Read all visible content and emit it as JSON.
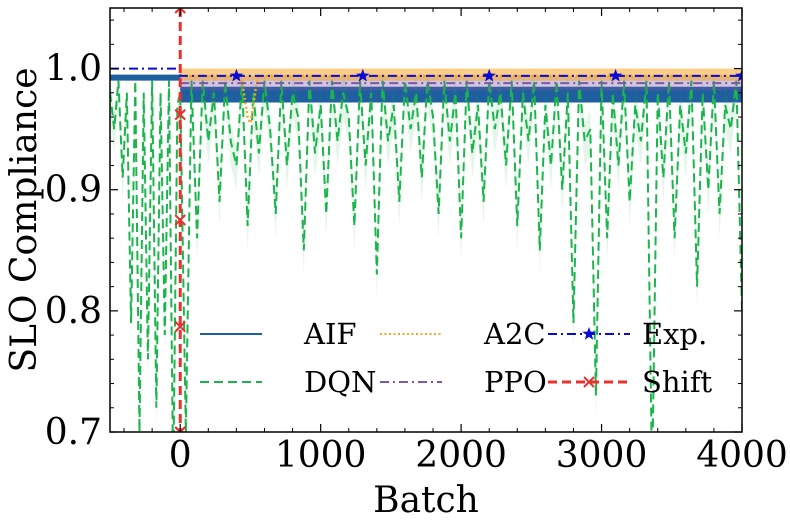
{
  "chart_data": {
    "type": "line",
    "title": "",
    "xlabel": "Batch",
    "ylabel": "SLO Compliance",
    "xlim": [
      -500,
      4000
    ],
    "ylim": [
      0.7,
      1.05
    ],
    "x_ticks": [
      0,
      1000,
      2000,
      3000,
      4000
    ],
    "x_tick_labels": [
      "0",
      "1000",
      "2000",
      "3000",
      "4000"
    ],
    "y_ticks": [
      0.7,
      0.8,
      0.9,
      1.0
    ],
    "y_tick_labels": [
      "0.7",
      "0.8",
      "0.9",
      "1.0"
    ],
    "grid": false,
    "legend_position": "lower-right",
    "series": [
      {
        "name": "AIF",
        "color": "#1f5f9f",
        "style": "solid",
        "description_points": {
          "x": [
            -500,
            0,
            0,
            4000
          ],
          "y_low": [
            0.99,
            0.99,
            0.972,
            0.972
          ],
          "y_high": [
            0.995,
            0.995,
            0.985,
            0.985
          ]
        }
      },
      {
        "name": "DQN",
        "color": "#1cb44c",
        "style": "dashed",
        "points": {
          "x": [
            -500,
            -470,
            -440,
            -410,
            -380,
            -350,
            -320,
            -290,
            -260,
            -230,
            -200,
            -170,
            -140,
            -110,
            -80,
            -50,
            -20,
            0,
            40,
            80,
            120,
            160,
            200,
            240,
            280,
            320,
            360,
            400,
            440,
            480,
            520,
            560,
            600,
            640,
            680,
            720,
            760,
            800,
            840,
            880,
            920,
            960,
            1000,
            1040,
            1080,
            1120,
            1160,
            1200,
            1240,
            1280,
            1320,
            1360,
            1400,
            1440,
            1480,
            1520,
            1560,
            1600,
            1640,
            1680,
            1720,
            1760,
            1800,
            1840,
            1880,
            1920,
            1960,
            2000,
            2040,
            2080,
            2120,
            2160,
            2200,
            2240,
            2280,
            2320,
            2360,
            2400,
            2440,
            2480,
            2520,
            2560,
            2600,
            2640,
            2680,
            2720,
            2760,
            2800,
            2840,
            2880,
            2920,
            2960,
            3000,
            3040,
            3080,
            3120,
            3160,
            3200,
            3240,
            3280,
            3320,
            3360,
            3400,
            3440,
            3480,
            3520,
            3560,
            3600,
            3640,
            3680,
            3720,
            3760,
            3800,
            3840,
            3880,
            3920,
            3960,
            4000
          ],
          "y": [
            0.98,
            0.95,
            0.99,
            0.91,
            0.98,
            0.79,
            0.99,
            0.7,
            0.98,
            0.76,
            0.99,
            0.72,
            0.98,
            0.78,
            0.99,
            0.66,
            0.97,
            0.98,
            0.7,
            0.99,
            0.86,
            0.99,
            0.94,
            0.98,
            0.89,
            0.99,
            0.94,
            0.92,
            0.99,
            0.87,
            0.98,
            0.93,
            0.99,
            0.95,
            0.88,
            0.99,
            0.92,
            0.98,
            0.96,
            0.85,
            0.99,
            0.93,
            0.97,
            0.88,
            0.99,
            0.94,
            0.98,
            0.96,
            0.87,
            0.99,
            0.92,
            0.98,
            0.83,
            0.99,
            0.94,
            0.97,
            0.89,
            0.99,
            0.95,
            0.98,
            0.91,
            0.99,
            0.96,
            0.88,
            0.99,
            0.94,
            0.98,
            0.86,
            0.99,
            0.93,
            0.97,
            0.89,
            0.99,
            0.95,
            0.98,
            0.92,
            0.99,
            0.87,
            0.98,
            0.94,
            0.99,
            0.85,
            0.97,
            0.92,
            0.99,
            0.9,
            0.98,
            0.79,
            0.99,
            0.94,
            0.95,
            0.73,
            0.99,
            0.86,
            0.98,
            0.92,
            0.99,
            0.89,
            0.97,
            0.94,
            0.99,
            0.66,
            0.98,
            0.91,
            0.99,
            0.86,
            0.97,
            0.93,
            0.99,
            0.82,
            0.98,
            0.9,
            0.99,
            0.88,
            0.97,
            0.95,
            0.99,
            0.8
          ]
        }
      },
      {
        "name": "A2C",
        "color": "#f5a623",
        "style": "dotted",
        "points": {
          "x": [
            0,
            400,
            440,
            460,
            480,
            500,
            520,
            540,
            560,
            600,
            1000,
            2000,
            3000,
            4000
          ],
          "y": [
            0.994,
            0.994,
            0.99,
            0.975,
            0.96,
            0.955,
            0.97,
            0.985,
            0.994,
            0.994,
            0.994,
            0.994,
            0.994,
            0.994
          ]
        }
      },
      {
        "name": "PPO",
        "color": "#7a5aa6",
        "style": "dashdot",
        "points": {
          "x": [
            0,
            1000,
            2000,
            3000,
            4000
          ],
          "y": [
            0.988,
            0.988,
            0.988,
            0.988,
            0.988
          ]
        }
      },
      {
        "name": "Exp.",
        "color": "#0a0ad6",
        "style": "dashdot",
        "marker": "star",
        "points": {
          "x": [
            -500,
            0,
            1,
            400,
            1300,
            2200,
            3100,
            4000
          ],
          "y": [
            1.0,
            1.0,
            0.994,
            0.994,
            0.994,
            0.994,
            0.994,
            0.994
          ]
        },
        "marker_points": {
          "x": [
            400,
            1300,
            2200,
            3100,
            4000
          ],
          "y": [
            0.994,
            0.994,
            0.994,
            0.994,
            0.994
          ]
        }
      },
      {
        "name": "Shift",
        "color": "#e8312f",
        "style": "dashed",
        "marker": "x",
        "points": {
          "x": [
            0,
            0
          ],
          "y": [
            0.7,
            1.05
          ]
        },
        "marker_points": {
          "x": [
            0,
            0,
            0,
            0,
            0,
            0
          ],
          "y": [
            1.05,
            0.962,
            0.875,
            0.787,
            0.7,
            0.7
          ]
        }
      }
    ]
  }
}
